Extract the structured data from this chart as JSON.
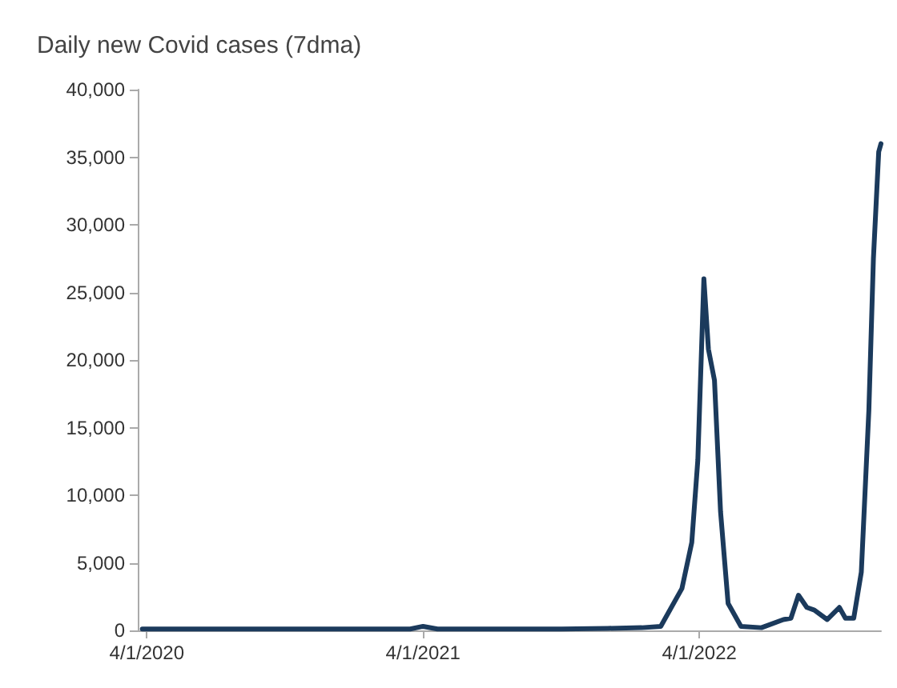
{
  "chart_data": {
    "type": "line",
    "title": "Daily new Covid cases (7dma)",
    "x": [
      "2020-03-26",
      "2020-05-01",
      "2020-07-01",
      "2020-09-01",
      "2020-11-01",
      "2021-01-01",
      "2021-03-15",
      "2021-04-01",
      "2021-04-20",
      "2021-06-01",
      "2021-08-01",
      "2021-10-01",
      "2021-12-01",
      "2022-01-15",
      "2022-02-09",
      "2022-03-09",
      "2022-03-22",
      "2022-03-30",
      "2022-04-07",
      "2022-04-13",
      "2022-04-21",
      "2022-04-29",
      "2022-05-09",
      "2022-05-26",
      "2022-06-22",
      "2022-07-21",
      "2022-07-31",
      "2022-08-10",
      "2022-08-21",
      "2022-08-31",
      "2022-09-17",
      "2022-10-03",
      "2022-10-11",
      "2022-10-22",
      "2022-11-01",
      "2022-11-11",
      "2022-11-17",
      "2022-11-24",
      "2022-11-27"
    ],
    "series": [
      {
        "color": "#1b3a5c",
        "values": [
          100,
          100,
          100,
          100,
          100,
          100,
          100,
          300,
          100,
          100,
          100,
          100,
          150,
          200,
          300,
          3100,
          6500,
          12600,
          26000,
          20800,
          18500,
          8800,
          2000,
          300,
          200,
          800,
          900,
          2600,
          1700,
          1500,
          800,
          1700,
          900,
          900,
          4300,
          16300,
          27500,
          35400,
          36000
        ]
      }
    ],
    "xlim": [
      "2020-03-20",
      "2022-11-27"
    ],
    "xticks": [
      {
        "value": "2020-04-01",
        "label": "4/1/2020"
      },
      {
        "value": "2021-04-01",
        "label": "4/1/2021"
      },
      {
        "value": "2022-04-01",
        "label": "4/1/2022"
      }
    ],
    "ylim": [
      0,
      40000
    ],
    "yticks": [
      {
        "value": 0,
        "label": "0"
      },
      {
        "value": 5000,
        "label": "5,000"
      },
      {
        "value": 10000,
        "label": "10,000"
      },
      {
        "value": 15000,
        "label": "15,000"
      },
      {
        "value": 20000,
        "label": "20,000"
      },
      {
        "value": 25000,
        "label": "25,000"
      },
      {
        "value": 30000,
        "label": "30,000"
      },
      {
        "value": 35000,
        "label": "35,000"
      },
      {
        "value": 40000,
        "label": "40,000"
      }
    ],
    "marker": "none",
    "line_style": "solid"
  }
}
